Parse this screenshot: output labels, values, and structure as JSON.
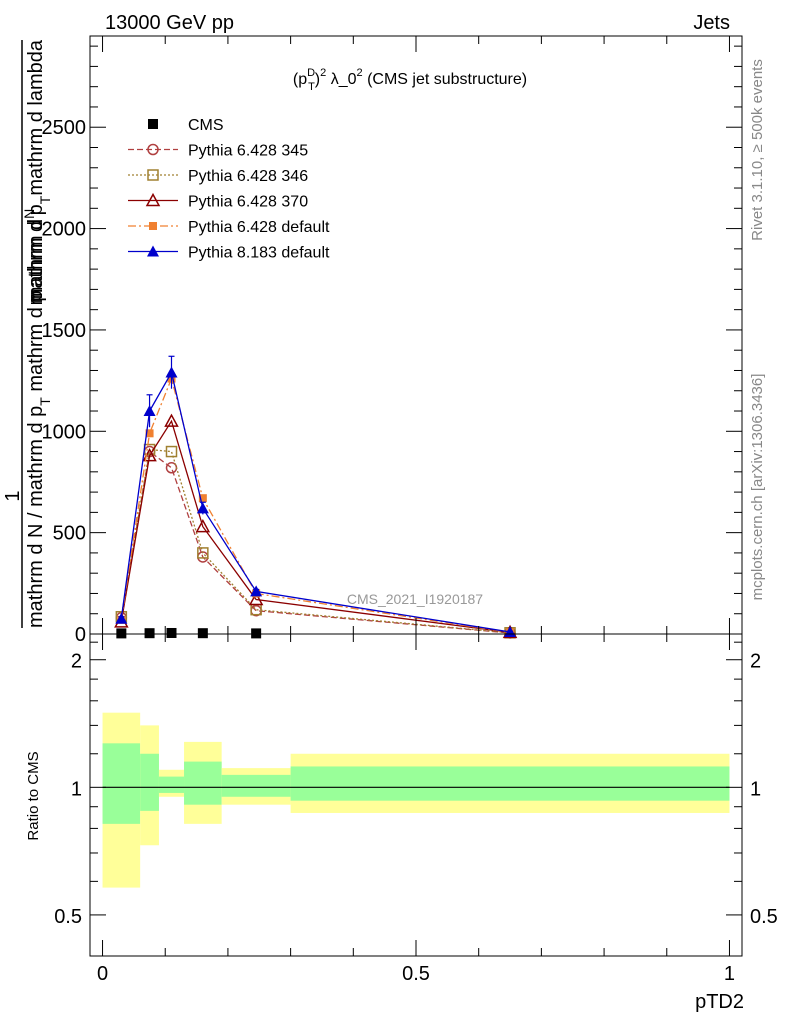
{
  "header": {
    "left_label": "13000 GeV pp",
    "right_label": "Jets"
  },
  "side_labels": {
    "rivet": "Rivet 3.1.10, ≥ 500k events",
    "mcplots": "mcplots.cern.ch [arXiv:1306.3436]"
  },
  "chart_data": [
    {
      "type": "line",
      "title": "(p_T^D)^2 λ_0^2 (CMS jet substructure)",
      "title_parts": {
        "open": "(p",
        "sup_d": "D",
        "sub_t": "T",
        "close": ")",
        "sup_2": "2",
        "lambda": " λ_0",
        "sup_2b": "2",
        "suffix": " (CMS jet substructure)"
      },
      "ylabel_lines": {
        "one": "1",
        "top_num": "mathrm d",
        "top_N": "N",
        "top_den": "mathrm d p",
        "top_den_sub": "T",
        "top_den_rest": "mathrm d lambda",
        "bottom": "mathrm d N / mathrm d p",
        "bottom_sub": "T",
        "bottom_rest": " mathrm d p"
      },
      "xlabel": "pTD2",
      "xlim": [
        -0.02,
        1.02
      ],
      "ylim": [
        0,
        2950
      ],
      "yticks": [
        0,
        500,
        1000,
        1500,
        2000,
        2500
      ],
      "ytick_labels": [
        "0",
        "500",
        "1000",
        "1500",
        "2000",
        "2500"
      ],
      "watermark": "CMS_2021_I1920187",
      "legend_position": "top-left",
      "series": [
        {
          "name": "CMS",
          "style": "data",
          "color": "#000000",
          "marker": "square",
          "x": [
            0.03,
            0.075,
            0.11,
            0.16,
            0.245
          ],
          "y": [
            3,
            4,
            5,
            4,
            3
          ]
        },
        {
          "name": "Pythia 6.428 345",
          "style": "dashed",
          "color": "#b04040",
          "marker": "open-circle",
          "x": [
            0.03,
            0.075,
            0.11,
            0.16,
            0.245,
            0.65
          ],
          "y": [
            80,
            900,
            820,
            380,
            115,
            5
          ]
        },
        {
          "name": "Pythia 6.428 346",
          "style": "dotted",
          "color": "#a08030",
          "marker": "open-square",
          "x": [
            0.03,
            0.075,
            0.11,
            0.16,
            0.245,
            0.65
          ],
          "y": [
            85,
            910,
            900,
            400,
            120,
            6
          ]
        },
        {
          "name": "Pythia 6.428 370",
          "style": "solid",
          "color": "#8b0000",
          "marker": "open-triangle",
          "x": [
            0.03,
            0.075,
            0.11,
            0.16,
            0.245,
            0.65
          ],
          "y": [
            60,
            880,
            1050,
            530,
            170,
            8
          ]
        },
        {
          "name": "Pythia 6.428 default",
          "style": "dashdot",
          "color": "#f08030",
          "marker": "filled-square",
          "x": [
            0.03,
            0.075,
            0.11,
            0.16,
            0.245,
            0.65
          ],
          "y": [
            70,
            990,
            1260,
            670,
            200,
            8
          ]
        },
        {
          "name": "Pythia 8.183 default",
          "style": "solid",
          "color": "#0000cc",
          "marker": "filled-triangle",
          "x": [
            0.03,
            0.075,
            0.11,
            0.16,
            0.245,
            0.65
          ],
          "y": [
            75,
            1100,
            1290,
            620,
            210,
            10
          ],
          "yerr": [
            10,
            80,
            80,
            30,
            10,
            3
          ]
        }
      ]
    },
    {
      "type": "area",
      "ylabel": "Ratio to CMS",
      "xlabel": "pTD2",
      "xlim": [
        -0.02,
        1.02
      ],
      "ylim": [
        0.4,
        2.3
      ],
      "log_y": true,
      "yticks": [
        0.5,
        1,
        2
      ],
      "ytick_labels": [
        "0.5",
        "1",
        "2"
      ],
      "xticks": [
        0,
        0.5,
        1
      ],
      "xtick_labels": [
        "0",
        "0.5",
        "1"
      ],
      "reference": 1,
      "bands": {
        "bin_edges": [
          0,
          0.06,
          0.09,
          0.13,
          0.19,
          0.3,
          1.0
        ],
        "outer_low": [
          0.58,
          0.73,
          0.95,
          0.82,
          0.91,
          0.87
        ],
        "outer_high": [
          1.5,
          1.4,
          1.1,
          1.28,
          1.11,
          1.2
        ],
        "inner_low": [
          0.82,
          0.88,
          0.97,
          0.91,
          0.95,
          0.93
        ],
        "inner_high": [
          1.27,
          1.2,
          1.06,
          1.15,
          1.07,
          1.12
        ],
        "outer_color": "#ffff99",
        "inner_color": "#99ff99"
      }
    }
  ]
}
